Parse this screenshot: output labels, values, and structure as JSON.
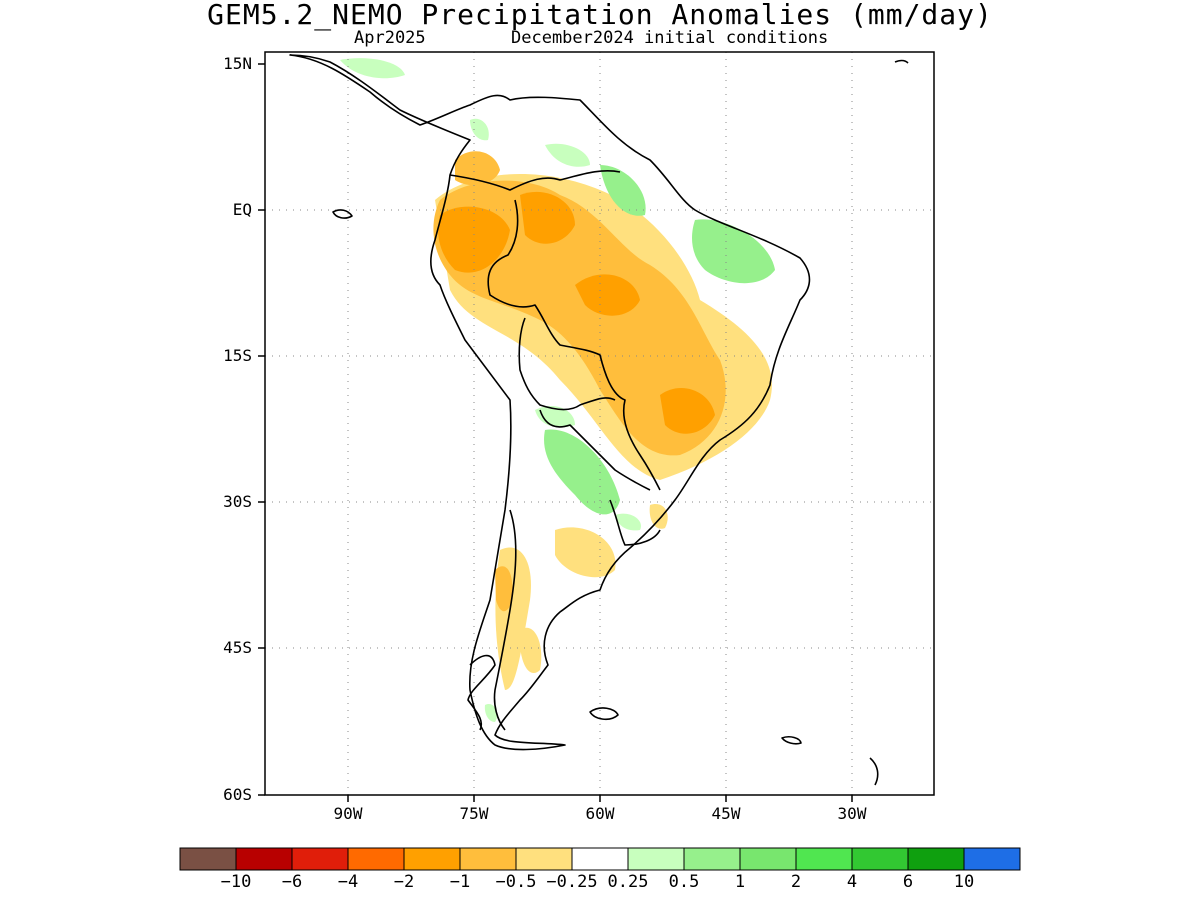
{
  "title": "GEM5.2_NEMO Precipitation Anomalies (mm/day)",
  "subtitle_month": "Apr2025",
  "subtitle_ic": "December2024 initial conditions",
  "lat_labels": [
    "15N",
    "EQ",
    "15S",
    "30S",
    "45S",
    "60S"
  ],
  "lon_labels": [
    "90W",
    "75W",
    "60W",
    "45W",
    "30W"
  ],
  "colorbar": {
    "colors": [
      "#7a5044",
      "#b80000",
      "#e01e0a",
      "#ff6a00",
      "#ffa000",
      "#ffbe3c",
      "#ffe07e",
      "#ffffff",
      "#c8ffbe",
      "#96f08c",
      "#78e66e",
      "#50e650",
      "#32c832",
      "#0fa00f",
      "#1e6ee6"
    ],
    "labels": [
      "−10",
      "−6",
      "−4",
      "−2",
      "−1",
      "−0.5",
      "−0.25",
      "0.25",
      "0.5",
      "1",
      "2",
      "4",
      "6",
      "10"
    ]
  }
}
